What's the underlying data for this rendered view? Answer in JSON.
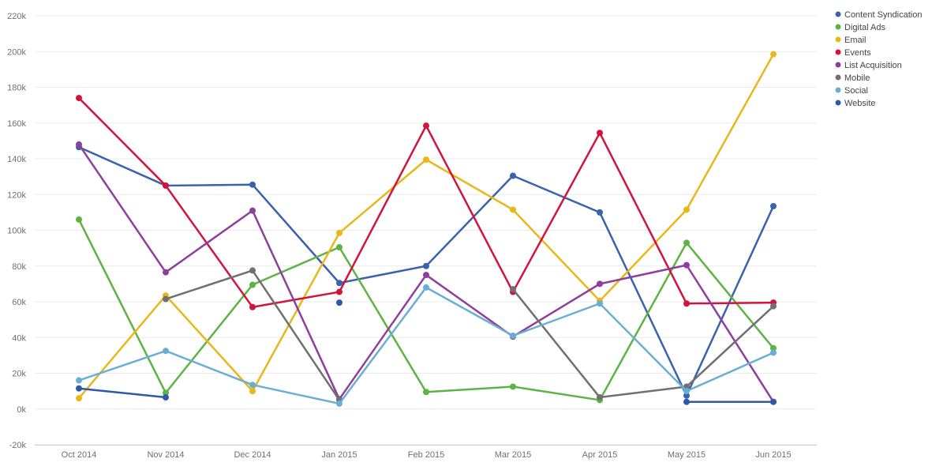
{
  "chart_data": {
    "type": "line",
    "title": "",
    "xlabel": "",
    "ylabel": "",
    "categories": [
      "Oct 2014",
      "Nov 2014",
      "Dec 2014",
      "Jan 2015",
      "Feb 2015",
      "Mar 2015",
      "Apr 2015",
      "May 2015",
      "Jun 2015"
    ],
    "ylim": [
      -20000,
      220000
    ],
    "yticks": [
      {
        "value": -20000,
        "label": "-20k"
      },
      {
        "value": 0,
        "label": "0k"
      },
      {
        "value": 20000,
        "label": "20k"
      },
      {
        "value": 40000,
        "label": "40k"
      },
      {
        "value": 60000,
        "label": "60k"
      },
      {
        "value": 80000,
        "label": "80k"
      },
      {
        "value": 100000,
        "label": "100k"
      },
      {
        "value": 120000,
        "label": "120k"
      },
      {
        "value": 140000,
        "label": "140k"
      },
      {
        "value": 160000,
        "label": "160k"
      },
      {
        "value": 180000,
        "label": "180k"
      },
      {
        "value": 200000,
        "label": "200k"
      },
      {
        "value": 220000,
        "label": "220k"
      }
    ],
    "grid": true,
    "legend_position": "top-right",
    "series": [
      {
        "name": "Content Syndication",
        "color": "#3a62ad",
        "values": [
          146500,
          125000,
          125500,
          70500,
          80000,
          130500,
          110000,
          7500,
          113500
        ]
      },
      {
        "name": "Digital Ads",
        "color": "#5db343",
        "values": [
          106000,
          9000,
          69500,
          90500,
          9500,
          12500,
          5000,
          93000,
          34000
        ]
      },
      {
        "name": "Email",
        "color": "#e8b71a",
        "values": [
          6000,
          63500,
          10000,
          98500,
          139500,
          111500,
          60500,
          111500,
          198500
        ]
      },
      {
        "name": "Events",
        "color": "#d0143c",
        "values": [
          174000,
          125000,
          57000,
          65500,
          158500,
          65500,
          154500,
          59000,
          59500
        ]
      },
      {
        "name": "List Acquisition",
        "color": "#8e3f9c",
        "values": [
          148000,
          76500,
          111000,
          5500,
          75000,
          40500,
          70000,
          80500,
          4000
        ]
      },
      {
        "name": "Mobile",
        "color": "#707070",
        "values": [
          null,
          61500,
          77500,
          5000,
          null,
          67000,
          6500,
          12500,
          57500
        ]
      },
      {
        "name": "Social",
        "color": "#6aaed6",
        "values": [
          16000,
          32500,
          13500,
          3000,
          68000,
          41000,
          59000,
          10000,
          31500
        ]
      },
      {
        "name": "Website",
        "color": "#2f58a8",
        "values": [
          11500,
          6500,
          null,
          59500,
          null,
          null,
          null,
          4000,
          4000
        ]
      }
    ]
  }
}
